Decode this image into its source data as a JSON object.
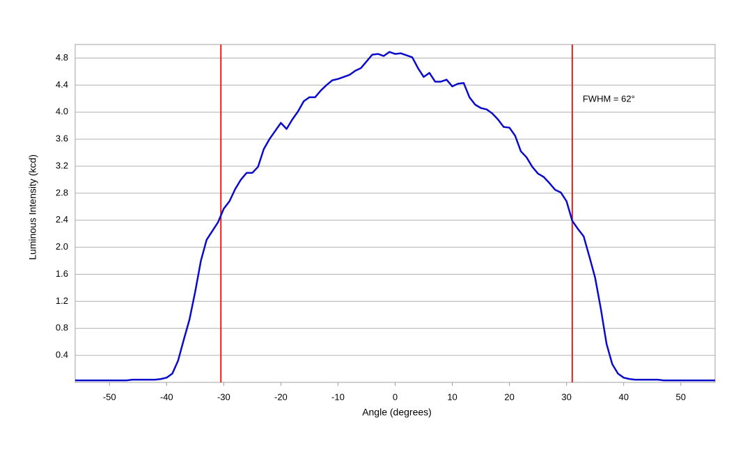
{
  "chart_data": {
    "type": "line",
    "xlabel": "Angle (degrees)",
    "ylabel": "Luminous Intensity (kcd)",
    "annotation": "FWHM = 62°",
    "x": [
      -56,
      -55,
      -54,
      -53,
      -52,
      -51,
      -50,
      -49,
      -48,
      -47,
      -46,
      -45,
      -44,
      -43,
      -42,
      -41,
      -40,
      -39,
      -38,
      -37,
      -36,
      -35,
      -34,
      -33,
      -32,
      -31,
      -30,
      -29,
      -28,
      -27,
      -26,
      -25,
      -24,
      -23,
      -22,
      -21,
      -20,
      -19,
      -18,
      -17,
      -16,
      -15,
      -14,
      -13,
      -12,
      -11,
      -10,
      -9,
      -8,
      -7,
      -6,
      -5,
      -4,
      -3,
      -2,
      -1,
      0,
      1,
      2,
      3,
      4,
      5,
      6,
      7,
      8,
      9,
      10,
      11,
      12,
      13,
      14,
      15,
      16,
      17,
      18,
      19,
      20,
      21,
      22,
      23,
      24,
      25,
      26,
      27,
      28,
      29,
      30,
      31,
      32,
      33,
      34,
      35,
      36,
      37,
      38,
      39,
      40,
      41,
      42,
      43,
      44,
      45,
      46,
      47,
      48,
      49,
      50,
      51,
      52,
      53,
      54,
      55,
      56
    ],
    "values": [
      0.03,
      0.03,
      0.03,
      0.03,
      0.03,
      0.03,
      0.03,
      0.03,
      0.03,
      0.03,
      0.04,
      0.04,
      0.04,
      0.04,
      0.04,
      0.05,
      0.07,
      0.13,
      0.32,
      0.63,
      0.93,
      1.34,
      1.8,
      2.11,
      2.24,
      2.37,
      2.57,
      2.68,
      2.86,
      3.0,
      3.1,
      3.1,
      3.19,
      3.45,
      3.6,
      3.72,
      3.84,
      3.75,
      3.89,
      4.01,
      4.16,
      4.22,
      4.22,
      4.32,
      4.4,
      4.47,
      4.49,
      4.52,
      4.55,
      4.61,
      4.65,
      4.75,
      4.85,
      4.86,
      4.83,
      4.89,
      4.86,
      4.87,
      4.84,
      4.81,
      4.65,
      4.52,
      4.58,
      4.45,
      4.45,
      4.48,
      4.38,
      4.42,
      4.43,
      4.22,
      4.11,
      4.06,
      4.04,
      3.98,
      3.89,
      3.78,
      3.77,
      3.65,
      3.42,
      3.33,
      3.19,
      3.09,
      3.04,
      2.95,
      2.85,
      2.81,
      2.68,
      2.39,
      2.27,
      2.16,
      1.86,
      1.55,
      1.09,
      0.57,
      0.27,
      0.13,
      0.07,
      0.05,
      0.04,
      0.04,
      0.04,
      0.04,
      0.04,
      0.03,
      0.03,
      0.03,
      0.03,
      0.03,
      0.03,
      0.03,
      0.03,
      0.03,
      0.03
    ],
    "color": "#0a0acc",
    "vlines": [
      -30.5,
      31
    ],
    "vline_color": "#e02020",
    "xlim": [
      -56,
      56
    ],
    "xticks": [
      -50,
      -40,
      -30,
      -20,
      -10,
      0,
      10,
      20,
      30,
      40,
      50
    ],
    "ylim": [
      0,
      5
    ],
    "yticks": [
      0.4,
      0.8,
      1.2,
      1.6,
      {
        "value": 2,
        "label": "2.0"
      },
      2.4,
      2.8,
      3.2,
      3.6,
      {
        "value": 4,
        "label": "4.0"
      },
      4.4,
      4.8
    ],
    "grid": true
  }
}
